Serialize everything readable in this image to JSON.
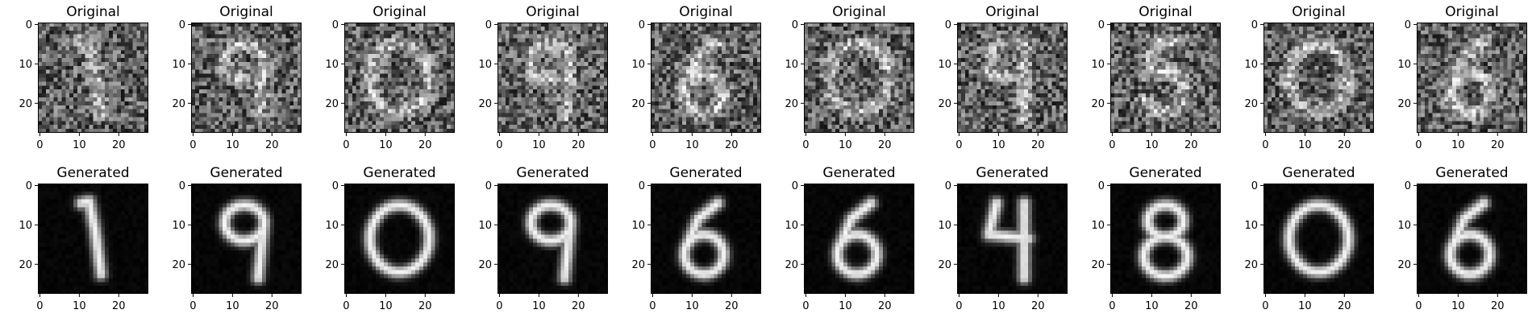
{
  "figure": {
    "rows": [
      {
        "title": "Original",
        "style": "noisy",
        "panels": [
          {
            "digit": "1"
          },
          {
            "digit": "9"
          },
          {
            "digit": "0"
          },
          {
            "digit": "9"
          },
          {
            "digit": "6"
          },
          {
            "digit": "0"
          },
          {
            "digit": "4"
          },
          {
            "digit": "5"
          },
          {
            "digit": "0"
          },
          {
            "digit": "6"
          }
        ]
      },
      {
        "title": "Generated",
        "style": "clean",
        "panels": [
          {
            "digit": "1"
          },
          {
            "digit": "9"
          },
          {
            "digit": "0"
          },
          {
            "digit": "9"
          },
          {
            "digit": "6"
          },
          {
            "digit": "6"
          },
          {
            "digit": "4"
          },
          {
            "digit": "8"
          },
          {
            "digit": "0"
          },
          {
            "digit": "6"
          }
        ]
      }
    ],
    "axis": {
      "x_ticks": [
        "0",
        "10",
        "20"
      ],
      "y_ticks": [
        "0",
        "10",
        "20"
      ],
      "pixels": 28
    },
    "colors": {
      "background": "#ffffff",
      "frame": "#000000",
      "text": "#000000"
    }
  }
}
